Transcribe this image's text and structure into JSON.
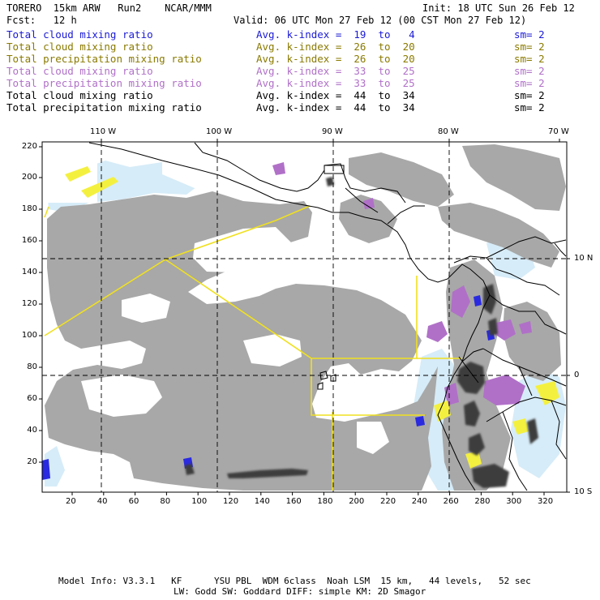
{
  "header": {
    "line1_left": "TORERO  15km ARW   Run2    NCAR/MMM",
    "line1_right": "Init: 18 UTC Sun 26 Feb 12",
    "line2_left": "Fcst:   12 h",
    "line2_right": "Valid: 06 UTC Mon 27 Feb 12 (00 CST Mon 27 Feb 12)"
  },
  "fields": [
    {
      "name": "Total cloud mixing ratio",
      "avg": "Avg. k-index =  19  to   4",
      "sm": "sm= 2",
      "color": "#1a1ad6"
    },
    {
      "name": "Total cloud mixing ratio",
      "avg": "Avg. k-index =  26  to  20",
      "sm": "sm= 2",
      "color": "#8a7a00"
    },
    {
      "name": "Total precipitation mixing ratio",
      "avg": "Avg. k-index =  26  to  20",
      "sm": "sm= 2",
      "color": "#8a7a00"
    },
    {
      "name": "Total cloud mixing ratio",
      "avg": "Avg. k-index =  33  to  25",
      "sm": "sm= 2",
      "color": "#b070c8"
    },
    {
      "name": "Total precipitation mixing ratio",
      "avg": "Avg. k-index =  33  to  25",
      "sm": "sm= 2",
      "color": "#b070c8"
    },
    {
      "name": "Total cloud mixing ratio",
      "avg": "Avg. k-index =  44  to  34",
      "sm": "sm= 2",
      "color": "#000000"
    },
    {
      "name": "Total precipitation mixing ratio",
      "avg": "Avg. k-index =  44  to  34",
      "sm": "sm= 2",
      "color": "#000000"
    }
  ],
  "axes": {
    "top_lon": [
      "110 W",
      "100 W",
      "90 W",
      "80 W",
      "70 W"
    ],
    "right_lat": [
      "10 N",
      "0",
      "10 S"
    ],
    "left_y": [
      "220",
      "200",
      "180",
      "160",
      "140",
      "120",
      "100",
      "80",
      "60",
      "40",
      "20"
    ],
    "bottom_x": [
      "20",
      "40",
      "60",
      "80",
      "100",
      "120",
      "140",
      "160",
      "180",
      "200",
      "220",
      "240",
      "260",
      "280",
      "300",
      "320"
    ]
  },
  "footer": {
    "line1": "Model Info: V3.3.1   KF      YSU PBL  WDM 6class  Noah LSM  15 km,   44 levels,   52 sec",
    "line2": "LW: Godd SW: Goddard DIFF: simple KM: 2D Smagor"
  },
  "colors": {
    "cloud_gray": "#a8a8a8",
    "dark_gray": "#3c3c3c",
    "light_blue": "#d6ecf8",
    "blue": "#2a2ae0",
    "purple": "#b070c8",
    "yellow": "#f4f040",
    "coast": "#000000",
    "domain_line": "#f0e020"
  }
}
